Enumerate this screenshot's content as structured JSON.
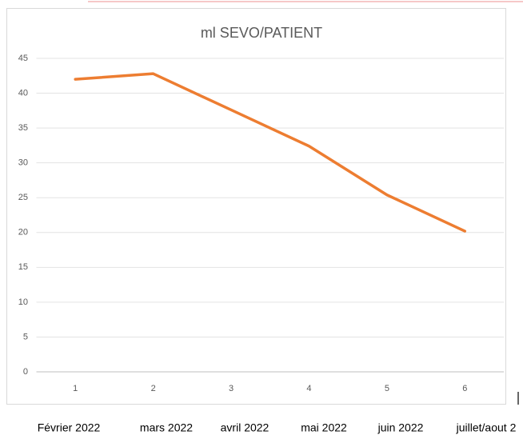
{
  "chart_data": {
    "type": "line",
    "title": "ml SEVO/PATIENT",
    "categories": [
      "1",
      "2",
      "3",
      "4",
      "5",
      "6"
    ],
    "series": [
      {
        "name": "ml SEVO/PATIENT",
        "color": "#ed7d31",
        "values": [
          42,
          42.8,
          37.6,
          32.4,
          25.4,
          20.2
        ]
      }
    ],
    "ylim": [
      0,
      45
    ],
    "yticks": [
      0,
      5,
      10,
      15,
      20,
      25,
      30,
      35,
      40,
      45
    ],
    "grid": true
  },
  "month_labels": [
    "Février 2022",
    "mars 2022",
    "avril 2022",
    "mai 2022",
    "juin 2022",
    "juillet/aout 2"
  ]
}
